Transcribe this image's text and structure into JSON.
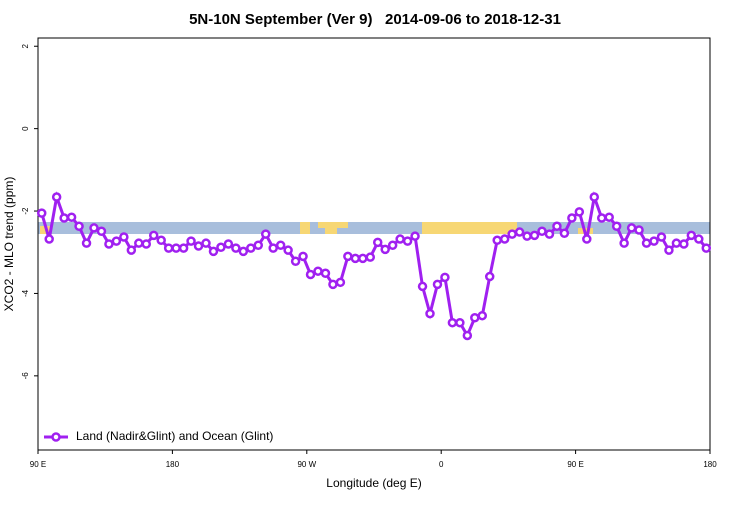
{
  "chart_data": {
    "type": "line",
    "title": "5N-10N September (Ver 9)   2014-09-06 to 2018-12-31",
    "x_label": "Longitude (deg E)",
    "y_label": "XCO2 - MLO trend (ppm)",
    "xlim": [
      90,
      540
    ],
    "ylim": [
      -7.8,
      2.2
    ],
    "xticks": [
      {
        "value": 90,
        "label": "90 E"
      },
      {
        "value": 180,
        "label": "180"
      },
      {
        "value": 270,
        "label": "90 W"
      },
      {
        "value": 360,
        "label": "0"
      },
      {
        "value": 450,
        "label": "90 E"
      },
      {
        "value": 540,
        "label": "180"
      }
    ],
    "yticks": [
      2,
      0,
      -2,
      -4,
      -6
    ],
    "x": [
      92.5,
      97.5,
      102.5,
      107.5,
      112.5,
      117.5,
      122.5,
      127.5,
      132.5,
      137.5,
      142.5,
      147.5,
      152.5,
      157.5,
      162.5,
      167.5,
      172.5,
      177.5,
      182.5,
      187.5,
      192.5,
      197.5,
      202.5,
      207.5,
      212.5,
      217.5,
      222.5,
      227.5,
      232.5,
      237.5,
      242.5,
      247.5,
      252.5,
      257.5,
      262.5,
      267.5,
      272.5,
      277.5,
      282.5,
      287.5,
      292.5,
      297.5,
      302.5,
      307.5,
      312.5,
      317.5,
      322.5,
      327.5,
      332.5,
      337.5,
      342.5,
      347.5,
      352.5,
      357.5,
      362.5,
      367.5,
      372.5,
      377.5,
      382.5,
      387.5,
      392.5,
      397.5,
      402.5,
      407.5,
      412.5,
      417.5,
      422.5,
      427.5,
      432.5,
      437.5,
      442.5,
      447.5,
      452.5,
      457.5,
      462.5,
      467.5,
      472.5,
      477.5,
      482.5,
      487.5,
      492.5,
      497.5,
      502.5,
      507.5,
      512.5,
      517.5,
      522.5,
      527.5,
      532.5,
      537.5
    ],
    "series": [
      {
        "name": "Land (Nadir&Glint) and Ocean (Glint)",
        "color": "#a020f0",
        "values": [
          -2.05,
          -2.68,
          -1.66,
          -2.17,
          -2.15,
          -2.37,
          -2.78,
          -2.41,
          -2.49,
          -2.8,
          -2.73,
          -2.63,
          -2.95,
          -2.78,
          -2.8,
          -2.59,
          -2.71,
          -2.9,
          -2.9,
          -2.9,
          -2.73,
          -2.85,
          -2.78,
          -2.98,
          -2.88,
          -2.8,
          -2.9,
          -2.98,
          -2.9,
          -2.83,
          -2.56,
          -2.9,
          -2.83,
          -2.95,
          -3.22,
          -3.1,
          -3.54,
          -3.46,
          -3.51,
          -3.78,
          -3.73,
          -3.1,
          -3.15,
          -3.15,
          -3.12,
          -2.76,
          -2.93,
          -2.83,
          -2.68,
          -2.73,
          -2.61,
          -3.83,
          -4.49,
          -3.78,
          -3.61,
          -4.71,
          -4.71,
          -5.02,
          -4.59,
          -4.54,
          -3.59,
          -2.71,
          -2.68,
          -2.56,
          -2.51,
          -2.61,
          -2.59,
          -2.49,
          -2.56,
          -2.37,
          -2.54,
          -2.17,
          -2.02,
          -2.68,
          -1.66,
          -2.17,
          -2.15,
          -2.37,
          -2.78,
          -2.41,
          -2.46,
          -2.78,
          -2.73,
          -2.63,
          -2.95,
          -2.78,
          -2.8,
          -2.59,
          -2.68,
          -2.9
        ]
      }
    ]
  }
}
